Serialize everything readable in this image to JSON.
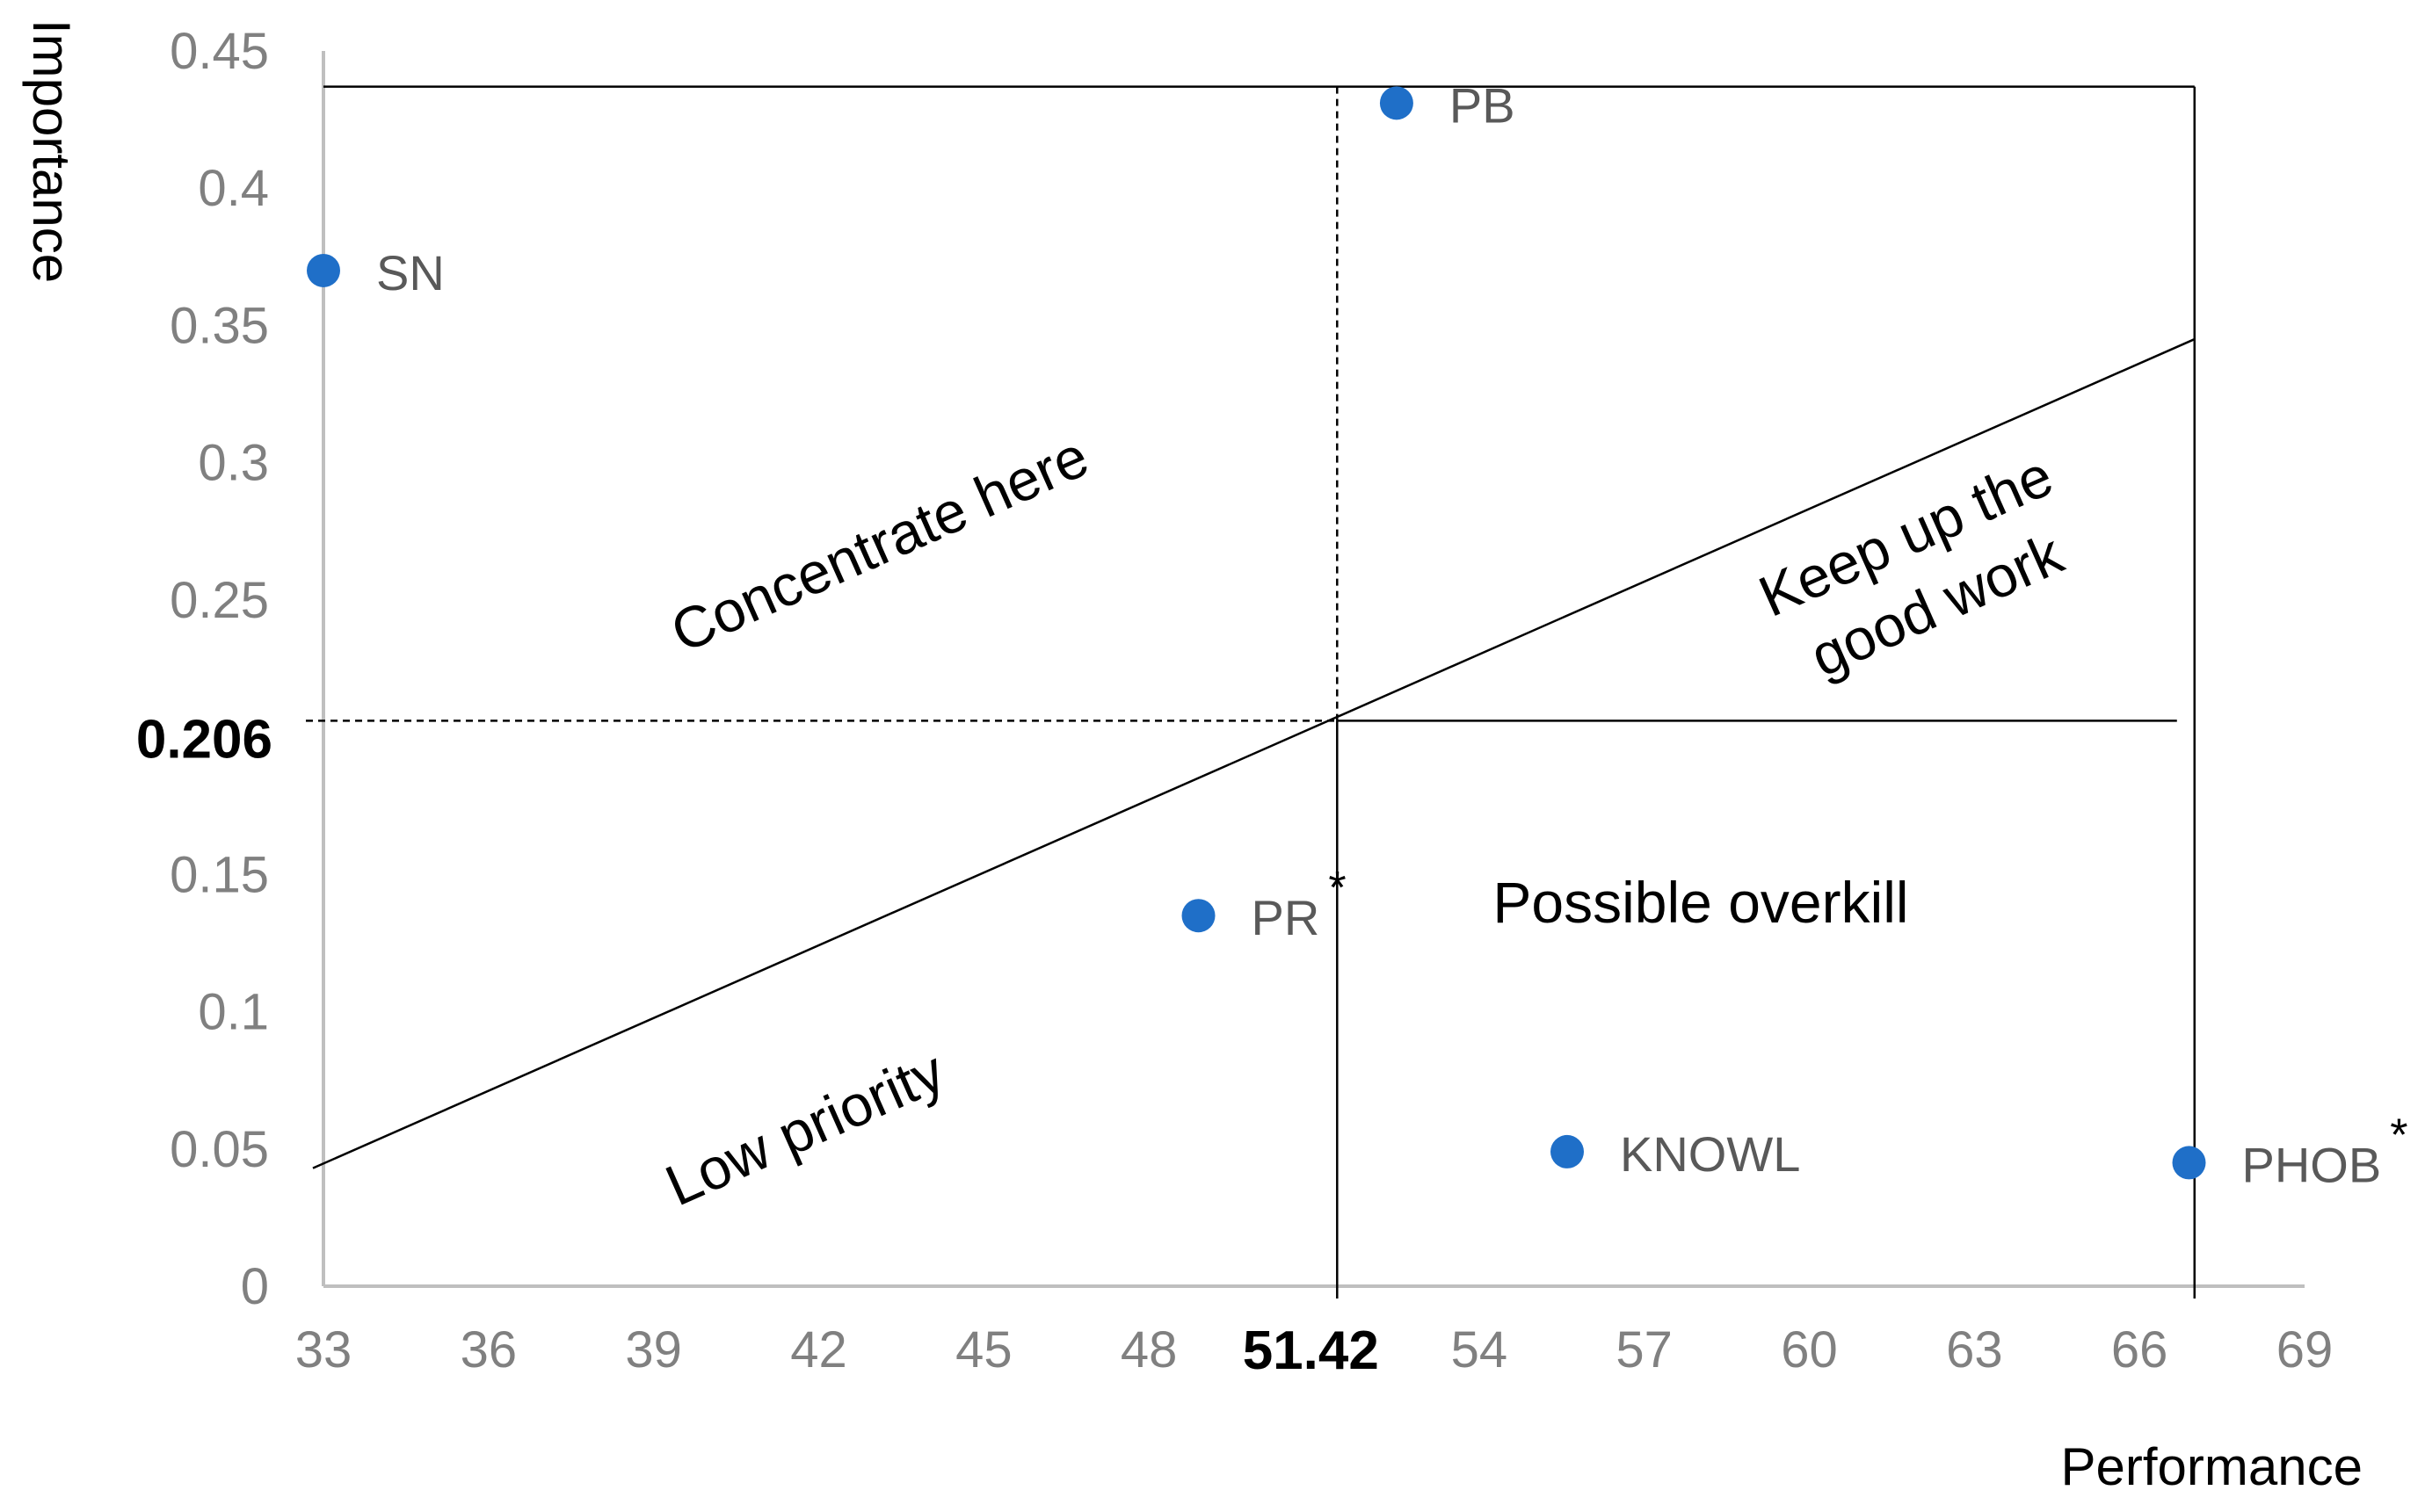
{
  "chart_data": {
    "type": "scatter",
    "xlabel": "Performance",
    "ylabel": "Importance",
    "xlim": [
      33,
      69
    ],
    "ylim": [
      0,
      0.45
    ],
    "x_ticks": [
      "33",
      "36",
      "39",
      "42",
      "45",
      "48",
      "54",
      "57",
      "60",
      "63",
      "66",
      "69"
    ],
    "y_ticks": [
      "0",
      "0.05",
      "0.1",
      "0.15",
      "0.25",
      "0.3",
      "0.35",
      "0.4",
      "0.45"
    ],
    "reference_x": {
      "value": 51.42,
      "label": "51.42"
    },
    "reference_y": {
      "value": 0.206,
      "label": "0.206"
    },
    "diagonal": {
      "from": [
        33,
        0.043
      ],
      "to": [
        67,
        0.345
      ]
    },
    "frame_bounds": {
      "x": [
        33,
        67
      ],
      "y": [
        0,
        0.437
      ]
    },
    "points": [
      {
        "label": "SN",
        "x": 33.0,
        "y": 0.37,
        "marked": false
      },
      {
        "label": "PB",
        "x": 52.5,
        "y": 0.431,
        "marked": false
      },
      {
        "label": "PR",
        "x": 48.9,
        "y": 0.135,
        "marked": true
      },
      {
        "label": "KNOWL",
        "x": 55.6,
        "y": 0.049,
        "marked": false
      },
      {
        "label": "PHOB",
        "x": 66.9,
        "y": 0.045,
        "marked": true
      }
    ],
    "marker_symbol": "*",
    "regions": [
      {
        "label": "Concentrate here",
        "lines": [
          "Concentrate here"
        ]
      },
      {
        "label": "Keep up the good work",
        "lines": [
          "Keep up the",
          "good work"
        ]
      },
      {
        "label": "Possible overkill",
        "lines": [
          "Possible overkill"
        ]
      },
      {
        "label": "Low priority",
        "lines": [
          "Low priority"
        ]
      }
    ],
    "colors": {
      "point": "#1f6fc8",
      "lines": "#000000",
      "axis": "#bfbfbf"
    }
  }
}
